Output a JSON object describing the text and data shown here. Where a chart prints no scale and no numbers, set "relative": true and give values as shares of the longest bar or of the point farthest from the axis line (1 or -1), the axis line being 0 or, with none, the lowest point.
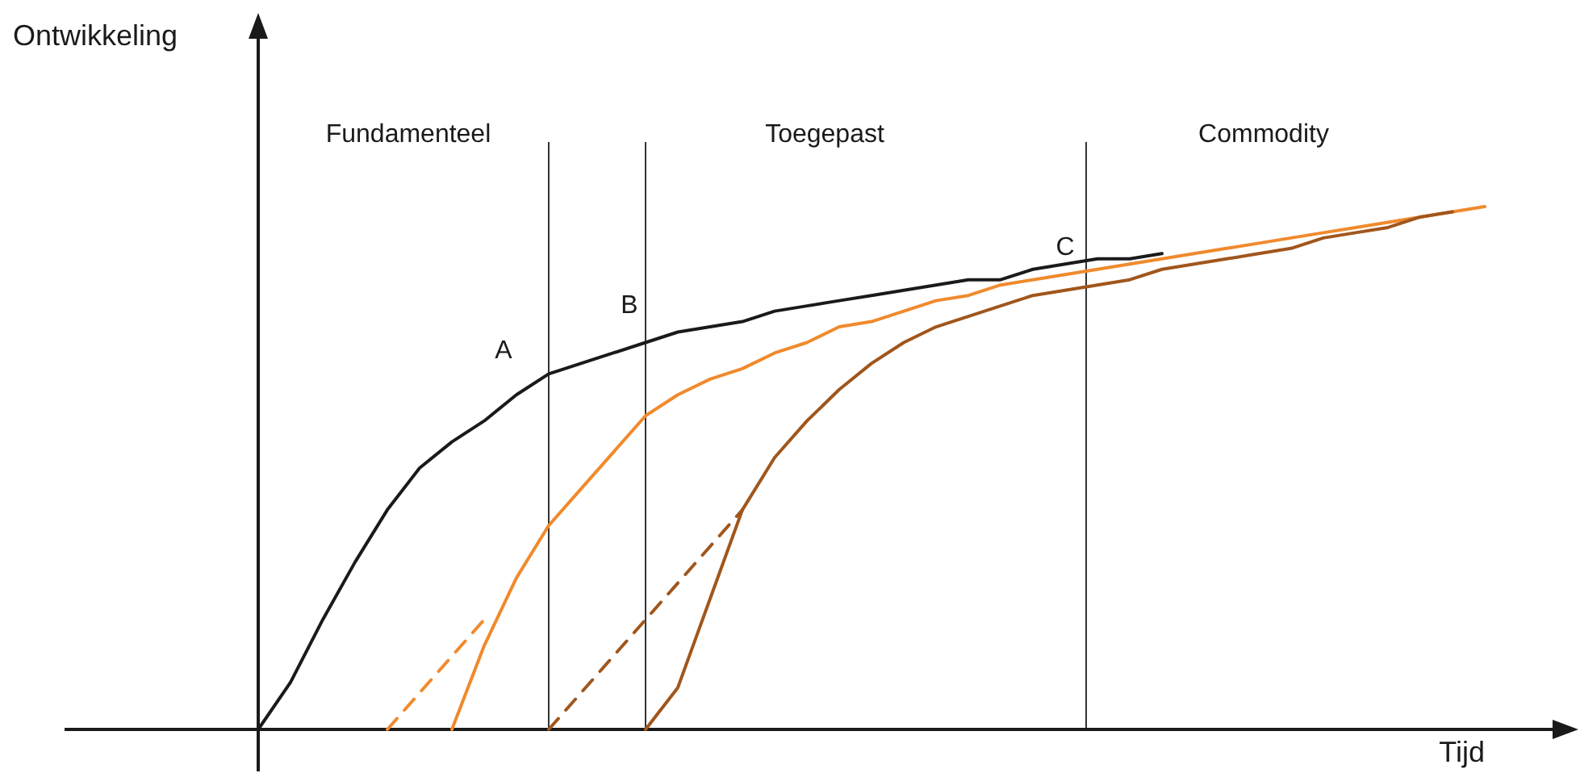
{
  "chart_data": {
    "type": "line",
    "relative": true,
    "xlabel": "Tijd",
    "categories": [
      null,
      null,
      null,
      null,
      null,
      null,
      null,
      null,
      null,
      null,
      null,
      null,
      null,
      null,
      null,
      null,
      null,
      null,
      null,
      null,
      null,
      null,
      null,
      null,
      null,
      null,
      null,
      null,
      null,
      null,
      null,
      null,
      null,
      null,
      null,
      null,
      null,
      null,
      null,
      null,
      null,
      null,
      null,
      null,
      null,
      null,
      null
    ],
    "series": [
      {
        "color": "#1a1a1a",
        "values": [
          null,
          null,
          null,
          null,
          null,
          null,
          0,
          0.09,
          0.21,
          0.32,
          0.42,
          0.5,
          0.55,
          0.59,
          0.64,
          0.68,
          0.7,
          0.72,
          0.74,
          0.76,
          0.77,
          0.78,
          0.8,
          0.81,
          0.82,
          0.83,
          0.84,
          0.85,
          0.86,
          0.86,
          0.88,
          0.89,
          0.9,
          0.9,
          0.91,
          null,
          null,
          null,
          null,
          null,
          null,
          null,
          null,
          null,
          null,
          null,
          null
        ]
      },
      {
        "color": "#f08a2c",
        "values": [
          null,
          null,
          null,
          null,
          null,
          null,
          null,
          null,
          null,
          null,
          null,
          null,
          0,
          0.16,
          0.29,
          0.39,
          0.46,
          0.53,
          0.6,
          0.64,
          0.67,
          0.69,
          0.72,
          0.74,
          0.77,
          0.78,
          0.8,
          0.82,
          0.83,
          0.85,
          0.86,
          0.87,
          0.88,
          0.89,
          0.9,
          0.91,
          0.92,
          0.93,
          0.94,
          0.95,
          0.96,
          0.97,
          0.98,
          0.99,
          1,
          null,
          null
        ]
      },
      {
        "color": "#f08a2c",
        "line_style": "dashed",
        "values": [
          null,
          null,
          null,
          null,
          null,
          null,
          null,
          null,
          null,
          null,
          0,
          0.07,
          0.14,
          0.21,
          null,
          null,
          null,
          null,
          null,
          null,
          null,
          null,
          null,
          null,
          null,
          null,
          null,
          null,
          null,
          null,
          null,
          null,
          null,
          null,
          null,
          null,
          null,
          null,
          null,
          null,
          null,
          null,
          null,
          null,
          null,
          null,
          null
        ]
      },
      {
        "color": "#a0561c",
        "values": [
          null,
          null,
          null,
          null,
          null,
          null,
          null,
          null,
          null,
          null,
          null,
          null,
          null,
          null,
          null,
          null,
          null,
          null,
          0,
          0.08,
          0.25,
          0.42,
          0.52,
          0.59,
          0.65,
          0.7,
          0.74,
          0.77,
          0.79,
          0.81,
          0.83,
          0.84,
          0.85,
          0.86,
          0.88,
          0.89,
          0.9,
          0.91,
          0.92,
          0.94,
          0.95,
          0.96,
          0.98,
          0.99,
          null,
          null,
          null
        ]
      },
      {
        "color": "#a0561c",
        "line_style": "dashed",
        "values": [
          null,
          null,
          null,
          null,
          null,
          null,
          null,
          null,
          null,
          null,
          null,
          null,
          null,
          null,
          null,
          0,
          0.07,
          0.14,
          0.21,
          0.28,
          0.35,
          0.42,
          null,
          null,
          null,
          null,
          null,
          null,
          null,
          null,
          null,
          null,
          null,
          null,
          null,
          null,
          null,
          null,
          null,
          null,
          null,
          null,
          null,
          null,
          null,
          null,
          null
        ]
      }
    ],
    "annotations": [
      "Fundamenteel",
      "Toegepast",
      "Commodity",
      "A",
      "B",
      "C",
      "Ontwikkeling"
    ]
  }
}
